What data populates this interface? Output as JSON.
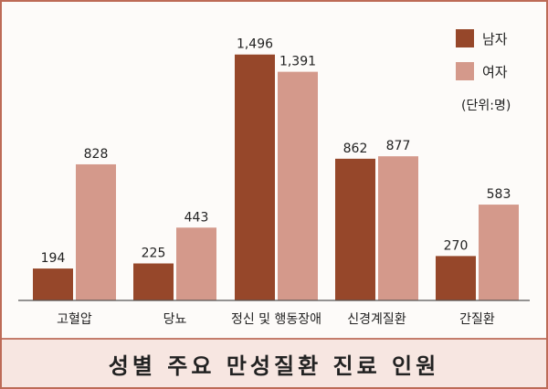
{
  "chart_data": {
    "type": "bar",
    "categories": [
      "고혈압",
      "당뇨",
      "정신 및 행동장애",
      "신경계질환",
      "간질환"
    ],
    "series": [
      {
        "name": "남자",
        "values": [
          194,
          225,
          1496,
          862,
          270
        ],
        "labels": [
          "194",
          "225",
          "1,496",
          "862",
          "270"
        ],
        "color": "#96472a"
      },
      {
        "name": "여자",
        "values": [
          828,
          443,
          1391,
          877,
          583
        ],
        "labels": [
          "828",
          "443",
          "1,391",
          "877",
          "583"
        ],
        "color": "#d4998b"
      }
    ],
    "unit_note": "(단위:명)",
    "title": "성별 주요 만성질환 진료 인원",
    "ylim": [
      0,
      1600
    ],
    "grid": false,
    "legend_position": "top-right"
  }
}
